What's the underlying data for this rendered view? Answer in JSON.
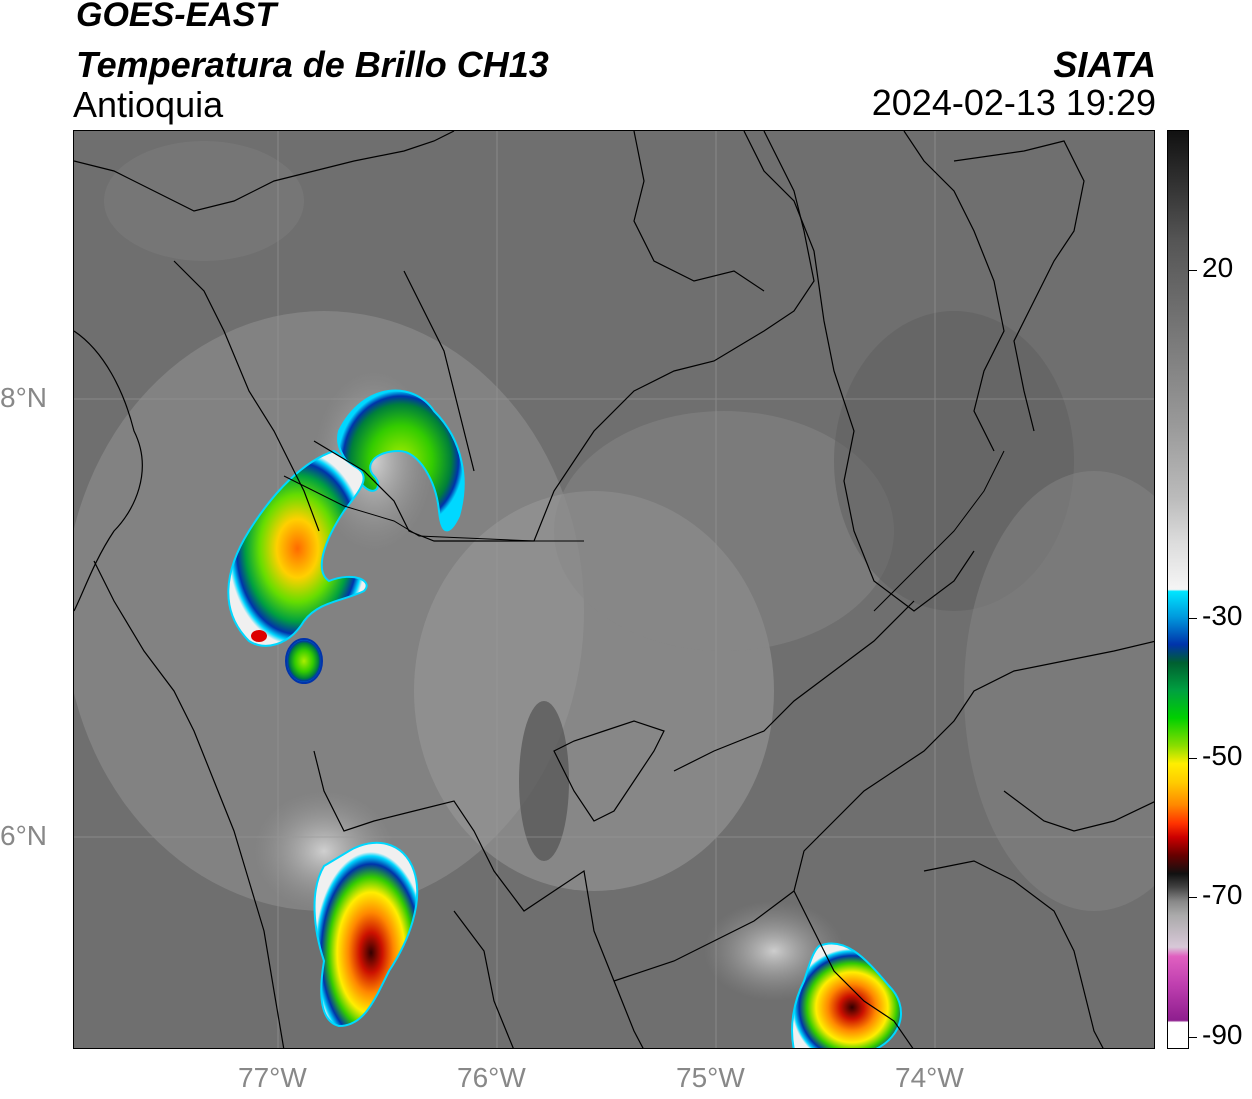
{
  "header": {
    "satellite": "GOES-EAST",
    "product": "Temperatura de Brillo CH13",
    "region": "Antioquia",
    "organization": "SIATA",
    "datetime": "2024-02-13 19:29"
  },
  "map": {
    "lat_labels": [
      "8°N",
      "6°N"
    ],
    "lon_labels": [
      "77°W",
      "76°W",
      "75°W",
      "74°W"
    ],
    "colors": {
      "background_gray": "#6f6f6f",
      "border": "#000000",
      "grid": "#999999"
    }
  },
  "colorbar": {
    "ticks": [
      "20",
      "-30",
      "-50",
      "-70",
      "-90"
    ],
    "colors": {
      "top": "#111111",
      "mid_gray": "#9a9a9a",
      "white": "#f5f5f5",
      "cyan": "#00e5ff",
      "blue": "#0033aa",
      "green": "#00c000",
      "yellow": "#ffee00",
      "orange": "#ff8800",
      "red": "#dd0000",
      "dark": "#111111",
      "pink": "#e060c0",
      "purple": "#8e1e8e"
    }
  }
}
